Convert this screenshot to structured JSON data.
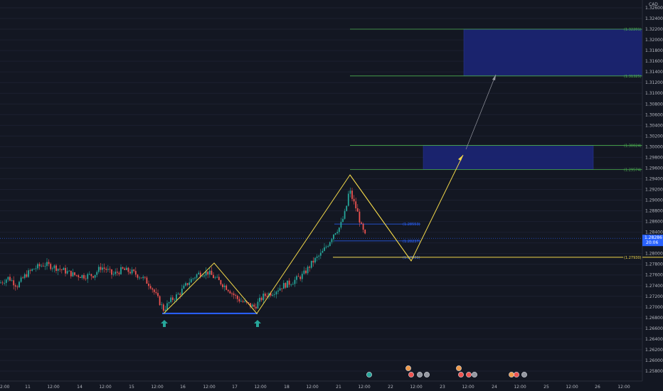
{
  "chart_data": {
    "type": "candlestick",
    "currency": "CAD",
    "ylim": [
      1.255,
      1.3275
    ],
    "y_ticks": [
      "1.32600",
      "1.32400",
      "1.32200",
      "1.32000",
      "1.31800",
      "1.31600",
      "1.31400",
      "1.31200",
      "1.31000",
      "1.30800",
      "1.30600",
      "1.30400",
      "1.30200",
      "1.30000",
      "1.29800",
      "1.29600",
      "1.29400",
      "1.29200",
      "1.29000",
      "1.28800",
      "1.28600",
      "1.28400",
      "1.28200",
      "1.28000",
      "1.27800",
      "1.27600",
      "1.27400",
      "1.27200",
      "1.27000",
      "1.26800",
      "1.26600",
      "1.26400",
      "1.26200",
      "1.26000",
      "1.25800"
    ],
    "x_ticks": [
      "2:00",
      "11",
      "12:00",
      "14",
      "12:00",
      "15",
      "12:00",
      "16",
      "12:00",
      "17",
      "12:00",
      "18",
      "12:00",
      "21",
      "12:00",
      "22",
      "12:00",
      "23",
      "12:00",
      "24",
      "12:00",
      "25",
      "12:00",
      "26",
      "12:00"
    ],
    "current_price": {
      "label": "1.28286",
      "countdown": "20:06",
      "value": 1.28286
    },
    "levels": [
      {
        "label": "(1.32201)",
        "value": 1.32201,
        "color": "#4caf50"
      },
      {
        "label": "(1.31325)",
        "value": 1.31325,
        "color": "#4caf50"
      },
      {
        "label": "(1.30024)",
        "value": 1.30024,
        "color": "#4caf50"
      },
      {
        "label": "(1.29574)",
        "value": 1.29574,
        "color": "#4caf50"
      },
      {
        "label": "(1.28553)",
        "value": 1.28553,
        "color": "#2962ff"
      },
      {
        "label": "(1.28237)",
        "value": 1.28237,
        "color": "#2962ff"
      },
      {
        "label": "(1.27931)",
        "value": 1.27931,
        "color": "#2962ff"
      },
      {
        "label": "(1.27930)",
        "value": 1.2793,
        "color": "#f0d64a",
        "highlight": true
      }
    ],
    "zones": [
      {
        "from": 1.31325,
        "to": 1.32201
      },
      {
        "from": 1.29574,
        "to": 1.30024
      }
    ],
    "pattern_points": [
      {
        "t": "15 12:00",
        "price": 1.2692
      },
      {
        "t": "16 12:00",
        "price": 1.2785
      },
      {
        "t": "17 12:00",
        "price": 1.2692
      },
      {
        "t": "21 00:00",
        "price": 1.2957
      },
      {
        "t": "22 12:00",
        "price": 1.2793
      },
      {
        "t": "23 12:00",
        "price": 1.2998
      }
    ],
    "projection_arrows": [
      {
        "from_price": 1.2793,
        "to_price": 1.299
      },
      {
        "from_price": 1.3,
        "to_price": 1.315
      }
    ]
  }
}
